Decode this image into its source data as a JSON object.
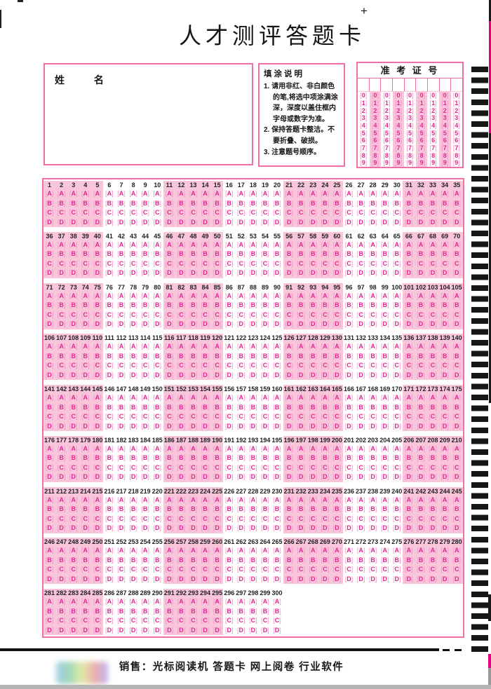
{
  "page": {
    "title": "人才测评答题卡",
    "registration_mark": "+"
  },
  "name_box": {
    "label_xing": "姓",
    "label_ming": "名"
  },
  "instructions": {
    "title": "填涂说明",
    "items": [
      "1. 请用非红、非白颜色的笔,将选中项涂满涂深，深度以盖住框内字母或数字为准。",
      "2. 保持答题卡整洁。不要折叠、破损。",
      "3. 注意题号顺序。"
    ]
  },
  "exam_number": {
    "title": "准 考 证 号",
    "columns": 9,
    "digits": [
      "0",
      "1",
      "2",
      "3",
      "4",
      "5",
      "6",
      "7",
      "8",
      "9"
    ]
  },
  "answer_sheet": {
    "options": [
      "A",
      "B",
      "C",
      "D"
    ],
    "group_size": 5,
    "total_questions": 300,
    "rows": [
      {
        "start": 1,
        "end": 35
      },
      {
        "start": 36,
        "end": 70
      },
      {
        "start": 71,
        "end": 105
      },
      {
        "start": 106,
        "end": 140
      },
      {
        "start": 141,
        "end": 175
      },
      {
        "start": 176,
        "end": 210
      },
      {
        "start": 211,
        "end": 245
      },
      {
        "start": 246,
        "end": 280
      },
      {
        "start": 281,
        "end": 300
      }
    ]
  },
  "footer": {
    "sales_text": "销售：光标阅读机 答题卡 网上阅卷 行业软件"
  },
  "colors": {
    "border_pink": "#f06fa8",
    "band_pink": "#f8c5db",
    "letter_magenta": "#e0268f",
    "bracket_pink": "#f392c4",
    "ink": "#1f1f1f"
  }
}
